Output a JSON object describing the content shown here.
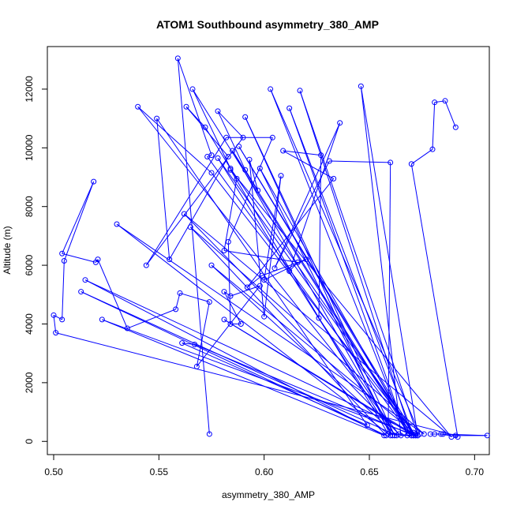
{
  "chart_data": {
    "type": "line",
    "title": "ATOM1 Southbound asymmetry_380_AMP",
    "xlabel": "asymmetry_380_AMP",
    "ylabel": "Altitude (m)",
    "xlim": [
      0.497,
      0.707
    ],
    "ylim": [
      -450,
      13450
    ],
    "xticks": [
      0.5,
      0.55,
      0.6,
      0.65,
      0.7
    ],
    "xtick_labels": [
      "0.50",
      "0.55",
      "0.60",
      "0.65",
      "0.70"
    ],
    "yticks": [
      0,
      2000,
      4000,
      6000,
      8000,
      10000,
      12000
    ],
    "ytick_labels": [
      "0",
      "2000",
      "4000",
      "6000",
      "8000",
      "10000",
      "12000"
    ],
    "grid": false,
    "legend": "none",
    "series_color": "#0000FF",
    "marker": "open-circle",
    "series": [
      {
        "points": [
          [
            0.574,
            250
          ],
          [
            0.559,
            13050
          ],
          [
            0.575,
            9750
          ],
          [
            0.573,
            9700
          ],
          [
            0.669,
            250
          ],
          [
            0.566,
            12000
          ],
          [
            0.584,
            9300
          ],
          [
            0.671,
            300
          ],
          [
            0.588,
            10050
          ],
          [
            0.671,
            200
          ],
          [
            0.612,
            11350
          ],
          [
            0.668,
            200
          ],
          [
            0.603,
            12000
          ],
          [
            0.674,
            250
          ],
          [
            0.67,
            200
          ],
          [
            0.617,
            11950
          ],
          [
            0.673,
            200
          ],
          [
            0.665,
            200
          ],
          [
            0.646,
            12100
          ],
          [
            0.673,
            200
          ],
          [
            0.659,
            250
          ],
          [
            0.584,
            9250
          ],
          [
            0.689,
            150
          ],
          [
            0.562,
            7750
          ],
          [
            0.664,
            250
          ],
          [
            0.54,
            11400
          ],
          [
            0.575,
            9150
          ],
          [
            0.672,
            200
          ],
          [
            0.578,
            9650
          ],
          [
            0.661,
            200
          ],
          [
            0.598,
            9300
          ],
          [
            0.67,
            200
          ],
          [
            0.585,
            9900
          ],
          [
            0.662,
            200
          ],
          [
            0.591,
            11050
          ],
          [
            0.66,
            200
          ],
          [
            0.53,
            7400
          ],
          [
            0.676,
            250
          ],
          [
            0.565,
            7300
          ],
          [
            0.658,
            200
          ],
          [
            0.513,
            5100
          ],
          [
            0.663,
            200
          ],
          [
            0.575,
            6000
          ],
          [
            0.672,
            250
          ],
          [
            0.515,
            5500
          ],
          [
            0.657,
            200
          ],
          [
            0.523,
            4150
          ],
          [
            0.672,
            200
          ],
          [
            0.581,
            4150
          ],
          [
            0.671,
            200
          ],
          [
            0.567,
            3300
          ],
          [
            0.561,
            3350
          ],
          [
            0.649,
            550
          ],
          [
            0.549,
            11000
          ],
          [
            0.555,
            6200
          ],
          [
            0.583,
            9700
          ],
          [
            0.563,
            11400
          ],
          [
            0.572,
            10700
          ],
          [
            0.587,
            8950
          ],
          [
            0.581,
            6500
          ],
          [
            0.616,
            6100
          ],
          [
            0.612,
            5800
          ],
          [
            0.636,
            10850
          ],
          [
            0.605,
            5900
          ],
          [
            0.631,
            9550
          ],
          [
            0.66,
            9500
          ],
          [
            0.659,
            650
          ],
          [
            0.626,
            4200
          ],
          [
            0.627,
            9750
          ],
          [
            0.609,
            9900
          ],
          [
            0.633,
            8950
          ],
          [
            0.592,
            5250
          ],
          [
            0.599,
            5650
          ],
          [
            0.62,
            6200
          ],
          [
            0.6,
            5500
          ],
          [
            0.608,
            9050
          ],
          [
            0.6,
            4250
          ],
          [
            0.593,
            9600
          ],
          [
            0.597,
            8550
          ],
          [
            0.591,
            9250
          ],
          [
            0.578,
            11250
          ],
          [
            0.59,
            10350
          ],
          [
            0.544,
            6000
          ],
          [
            0.582,
            10350
          ],
          [
            0.604,
            10350
          ],
          [
            0.583,
            6800
          ],
          [
            0.584,
            4000
          ],
          [
            0.589,
            4000
          ],
          [
            0.581,
            5100
          ],
          [
            0.584,
            4950
          ],
          [
            0.598,
            5300
          ],
          [
            0.568,
            2550
          ],
          [
            0.574,
            4750
          ],
          [
            0.56,
            5050
          ],
          [
            0.558,
            4500
          ],
          [
            0.535,
            3850
          ],
          [
            0.521,
            6200
          ],
          [
            0.52,
            6100
          ],
          [
            0.504,
            6400
          ],
          [
            0.519,
            8850
          ],
          [
            0.505,
            6150
          ],
          [
            0.504,
            4150
          ],
          [
            0.5,
            4300
          ],
          [
            0.501,
            3700
          ],
          [
            0.691,
            200
          ],
          [
            0.706,
            200
          ],
          [
            0.685,
            250
          ],
          [
            0.679,
            250
          ],
          [
            0.681,
            250
          ],
          [
            0.684,
            250
          ],
          [
            0.692,
            150
          ],
          [
            0.67,
            9450
          ],
          [
            0.68,
            9950
          ],
          [
            0.681,
            11550
          ],
          [
            0.686,
            11600
          ],
          [
            0.691,
            10700
          ]
        ]
      }
    ]
  }
}
